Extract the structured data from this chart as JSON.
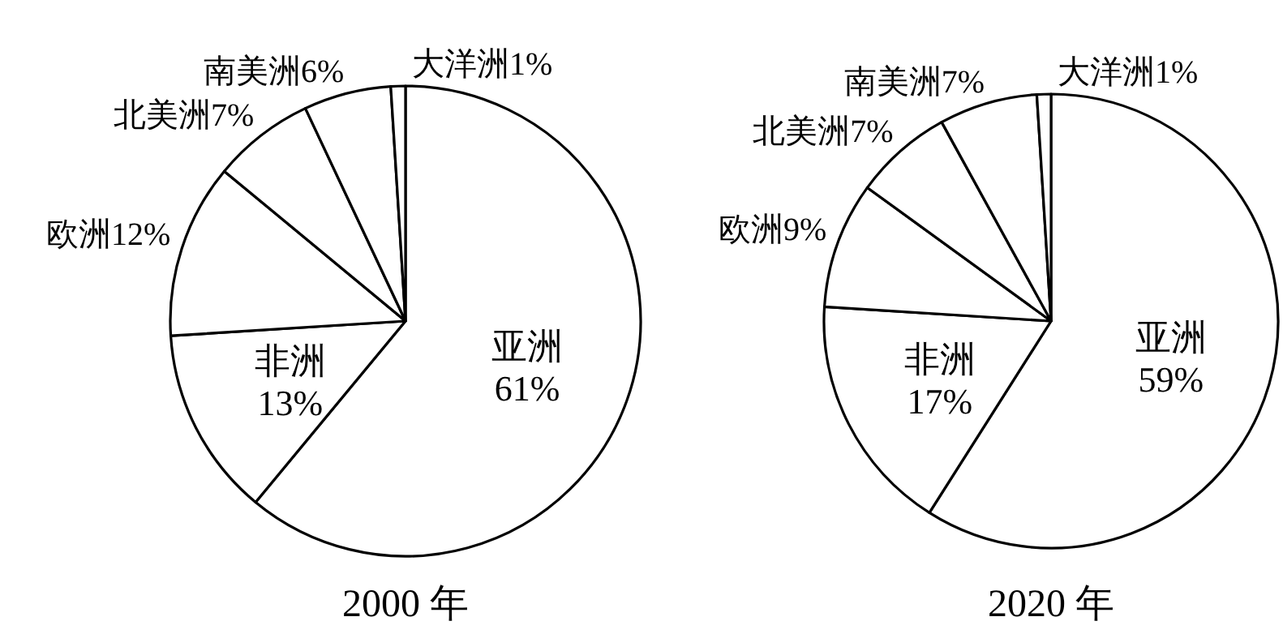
{
  "chart_data": [
    {
      "type": "pie",
      "title": "2000 年",
      "categories": [
        "亚洲",
        "非洲",
        "欧洲",
        "北美洲",
        "南美洲",
        "大洋洲"
      ],
      "values": [
        61,
        13,
        12,
        7,
        6,
        1
      ],
      "colors": [
        "#ffffff",
        "#ffffff",
        "#ffffff",
        "#ffffff",
        "#ffffff",
        "#ffffff"
      ],
      "value_labels": [
        "61%",
        "13%",
        "12%",
        "7%",
        "6%",
        "1%"
      ]
    },
    {
      "type": "pie",
      "title": "2020 年",
      "categories": [
        "亚洲",
        "非洲",
        "欧洲",
        "北美洲",
        "南美洲",
        "大洋洲"
      ],
      "values": [
        59,
        17,
        9,
        7,
        7,
        1
      ],
      "colors": [
        "#ffffff",
        "#ffffff",
        "#ffffff",
        "#ffffff",
        "#ffffff",
        "#ffffff"
      ],
      "value_labels": [
        "59%",
        "17%",
        "9%",
        "7%",
        "7%",
        "1%"
      ]
    }
  ]
}
